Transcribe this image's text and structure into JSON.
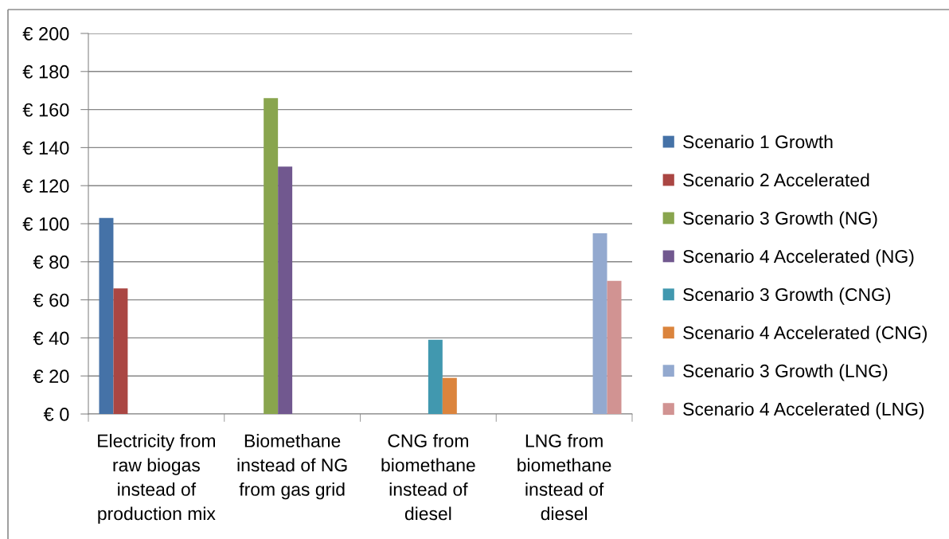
{
  "chart_data": {
    "type": "bar",
    "categories": [
      "Electricity from\nraw biogas\ninstead of\nproduction mix",
      "Biomethane\ninstead of NG\nfrom gas grid",
      "CNG from\nbiomethane\ninstead of\ndiesel",
      "LNG from\nbiomethane\ninstead of\ndiesel"
    ],
    "series": [
      {
        "name": "Scenario 1 Growth",
        "color": "#4572a7",
        "values": [
          103,
          null,
          null,
          null
        ]
      },
      {
        "name": "Scenario 2 Accelerated",
        "color": "#aa4643",
        "values": [
          66,
          null,
          null,
          null
        ]
      },
      {
        "name": "Scenario 3 Growth (NG)",
        "color": "#89a54e",
        "values": [
          null,
          166,
          null,
          null
        ]
      },
      {
        "name": "Scenario 4 Accelerated (NG)",
        "color": "#71588f",
        "values": [
          null,
          130,
          null,
          null
        ]
      },
      {
        "name": "Scenario 3 Growth (CNG)",
        "color": "#4198af",
        "values": [
          null,
          null,
          39,
          null
        ]
      },
      {
        "name": "Scenario 4 Accelerated (CNG)",
        "color": "#db843d",
        "values": [
          null,
          null,
          19,
          null
        ]
      },
      {
        "name": "Scenario 3 Growth (LNG)",
        "color": "#93a9cf",
        "values": [
          null,
          null,
          null,
          95
        ]
      },
      {
        "name": "Scenario 4 Accelerated (LNG)",
        "color": "#d19392",
        "values": [
          null,
          null,
          null,
          70
        ]
      }
    ],
    "ylim": [
      0,
      200
    ],
    "yticks": [
      {
        "value": 0,
        "label": "€ 0"
      },
      {
        "value": 20,
        "label": "€ 20"
      },
      {
        "value": 40,
        "label": "€ 40"
      },
      {
        "value": 60,
        "label": "€ 60"
      },
      {
        "value": 80,
        "label": "€ 80"
      },
      {
        "value": 100,
        "label": "€ 100"
      },
      {
        "value": 120,
        "label": "€ 120"
      },
      {
        "value": 140,
        "label": "€ 140"
      },
      {
        "value": 160,
        "label": "€ 160"
      },
      {
        "value": 180,
        "label": "€ 180"
      },
      {
        "value": 200,
        "label": "€ 200"
      }
    ],
    "grid": "y",
    "legend": "right"
  }
}
